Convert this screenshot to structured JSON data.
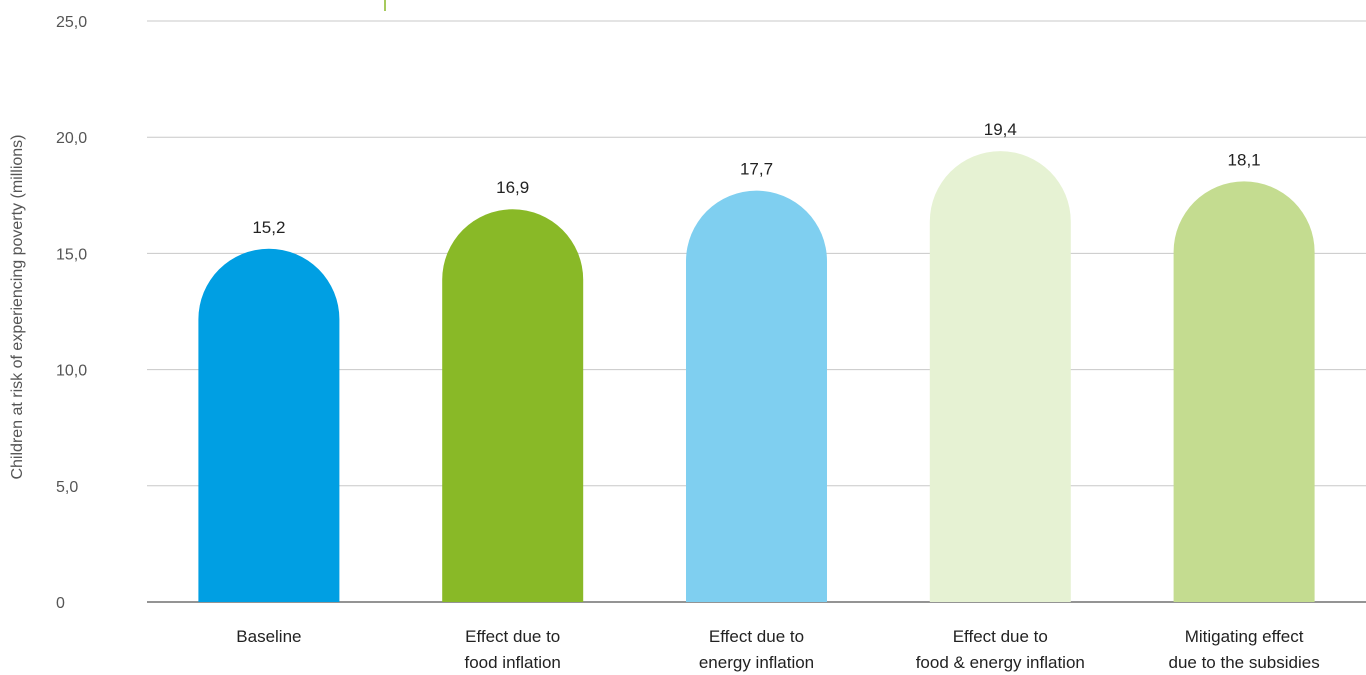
{
  "chart_data": {
    "type": "bar",
    "title": "",
    "xlabel": "",
    "ylabel": "Children at risk of experiencing poverty (millions)",
    "ylim": [
      0,
      25
    ],
    "yticks": [
      0,
      5,
      10,
      15,
      20,
      25
    ],
    "ytick_labels": [
      "0",
      "5,0",
      "10,0",
      "15,0",
      "20,0",
      "25,0"
    ],
    "grid": true,
    "legend": "none",
    "categories": [
      [
        "Baseline"
      ],
      [
        "Effect due to",
        "food inflation"
      ],
      [
        "Effect due to",
        "energy inflation"
      ],
      [
        "Effect due to",
        "food & energy inflation"
      ],
      [
        "Mitigating effect",
        "due to the subsidies"
      ]
    ],
    "values": [
      15.2,
      16.9,
      17.7,
      19.4,
      18.1
    ],
    "value_labels": [
      "15,2",
      "16,9",
      "17,7",
      "19,4",
      "18,1"
    ],
    "colors": [
      "#009fe3",
      "#89b927",
      "#7fcff0",
      "#e6f2d3",
      "#c4dc90"
    ]
  }
}
